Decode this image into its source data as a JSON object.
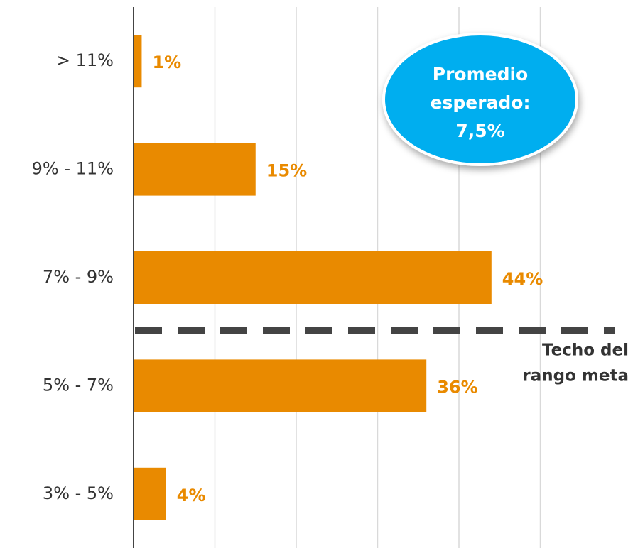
{
  "chart_data": {
    "type": "bar",
    "orientation": "horizontal",
    "categories": [
      "> 11%",
      "9% - 11%",
      "7% - 9%",
      "5% - 7%",
      "3% - 5%"
    ],
    "values": [
      1,
      15,
      44,
      36,
      4
    ],
    "value_labels": [
      "1%",
      "15%",
      "44%",
      "36%",
      "4%"
    ],
    "color": "#e98a00",
    "xlim": [
      0,
      60
    ],
    "xticks": [
      0,
      10,
      20,
      30,
      40,
      50
    ],
    "grid": true,
    "annotations": {
      "bubble": [
        "Promedio",
        "esperado:",
        "7,5%"
      ],
      "reference_line": [
        "Techo del",
        "rango meta"
      ]
    }
  }
}
